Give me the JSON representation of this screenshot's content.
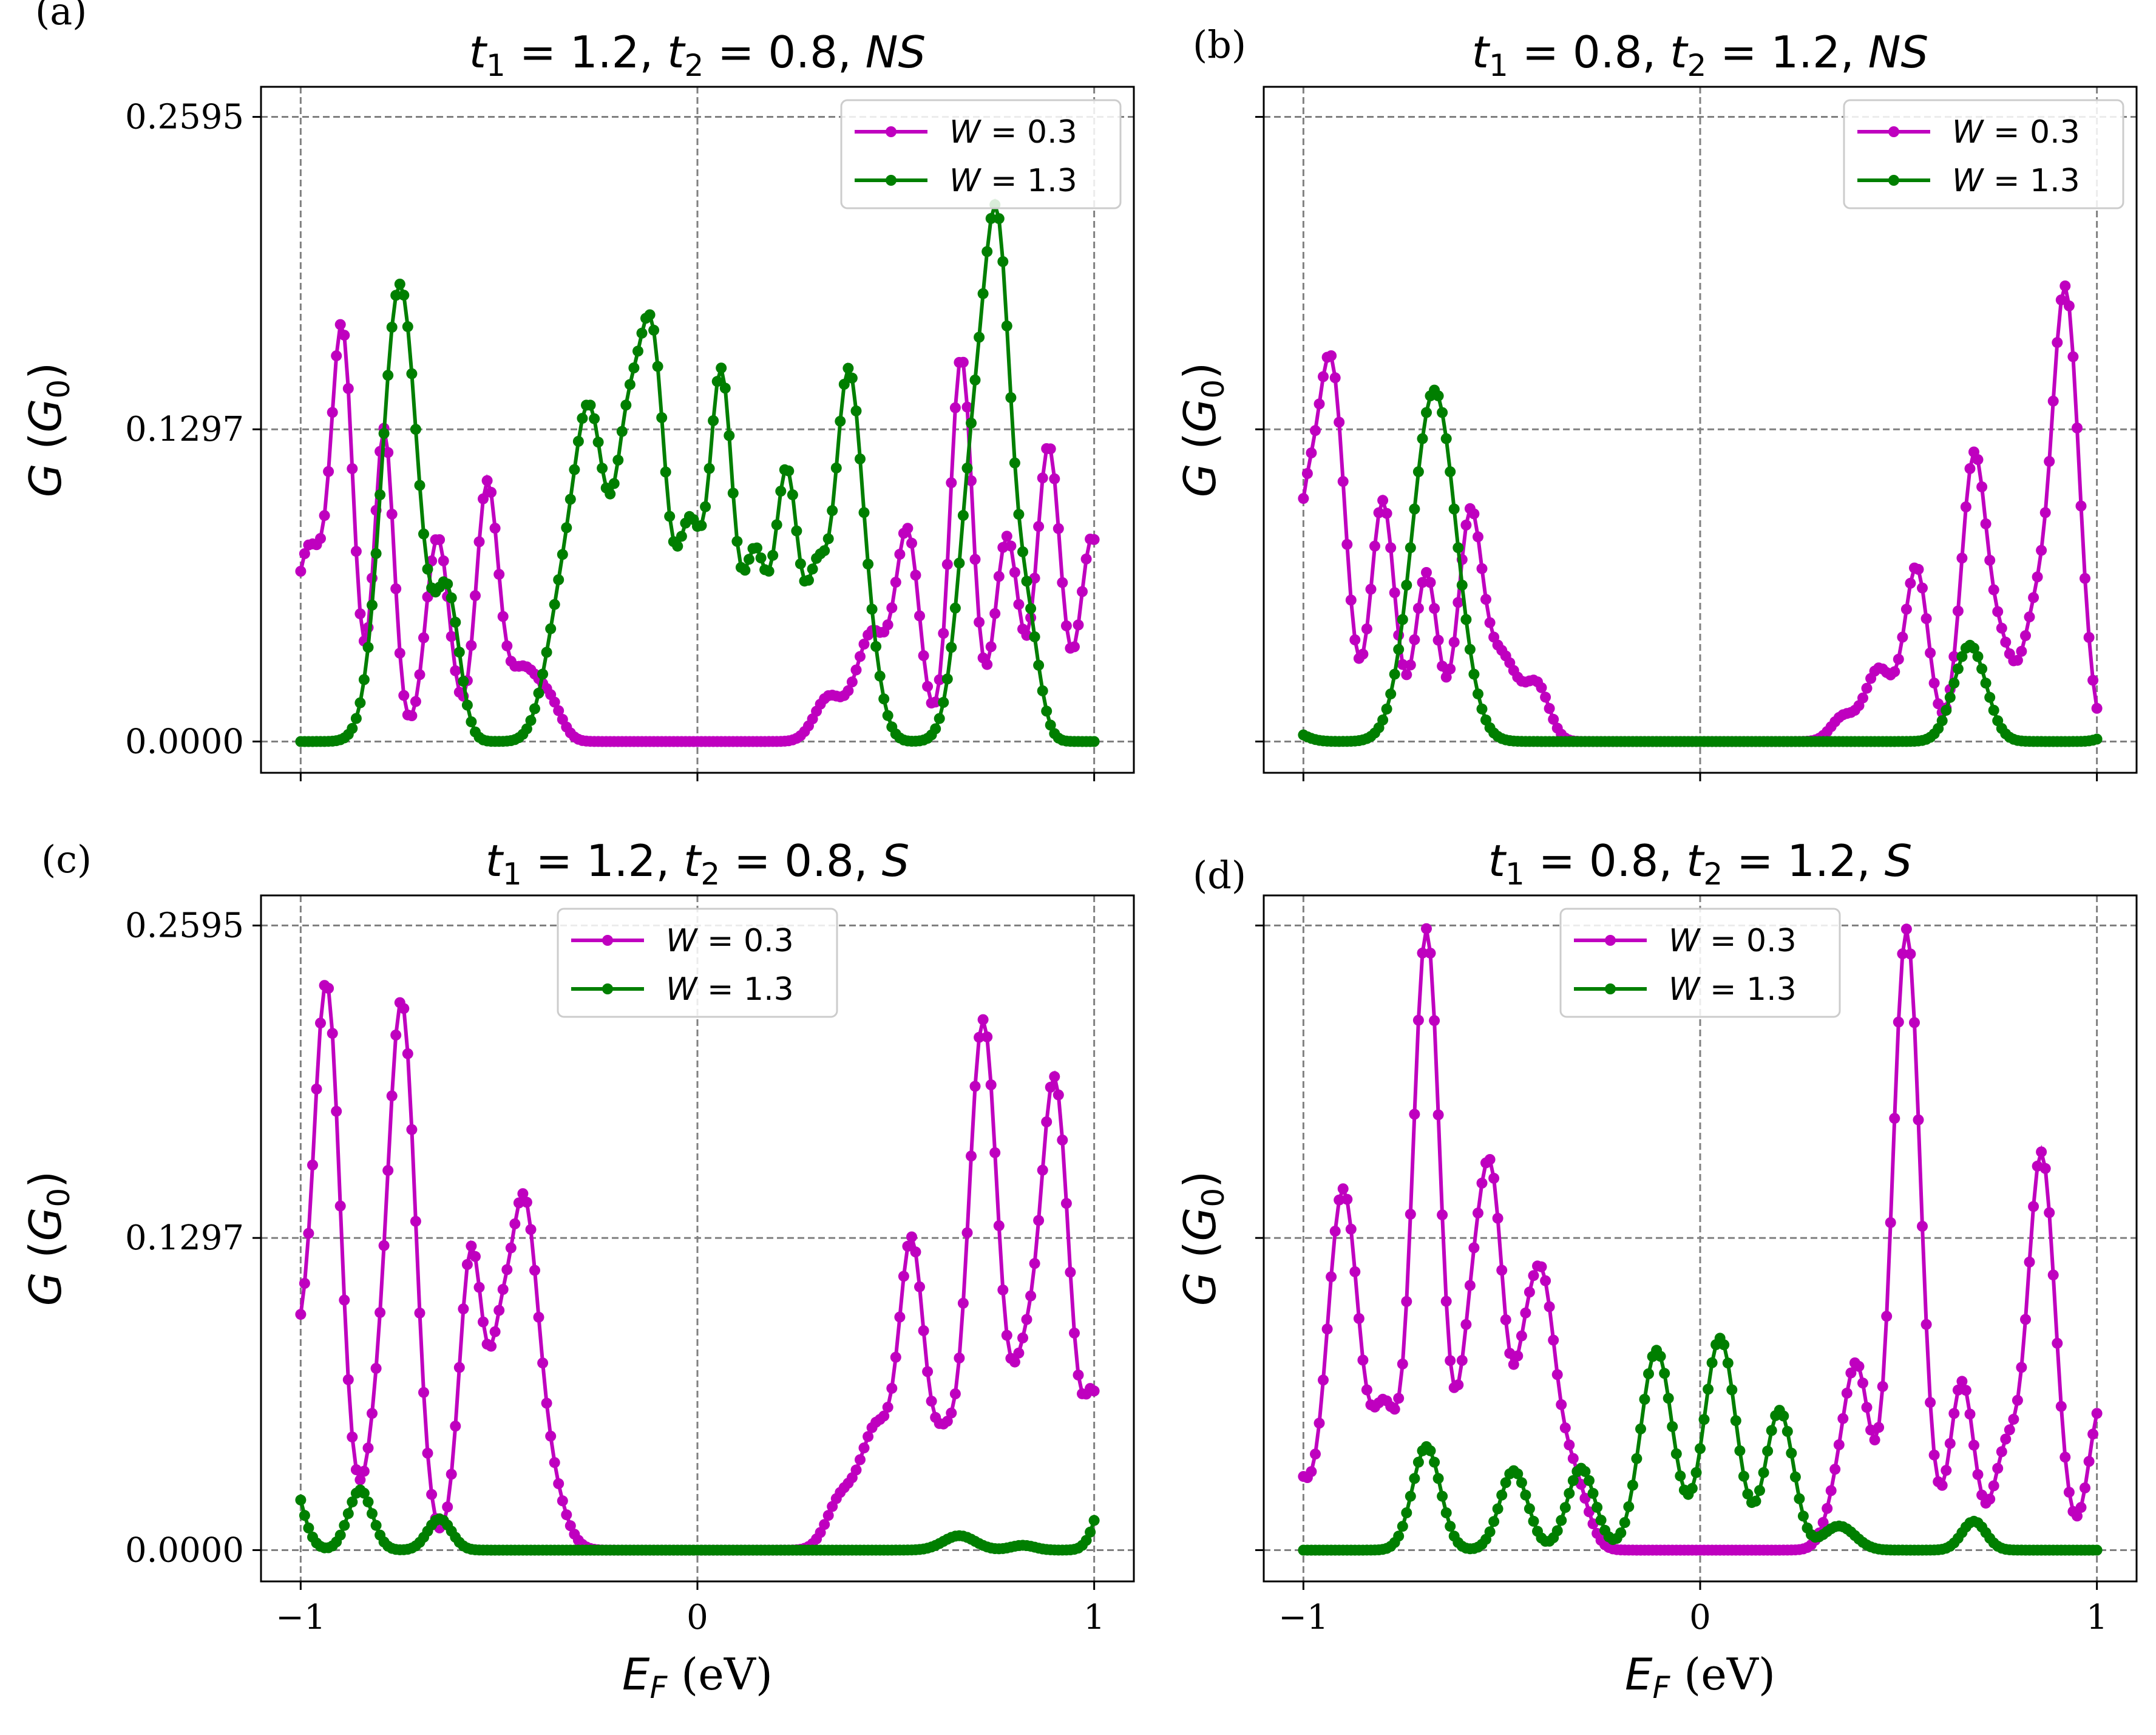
{
  "colors": {
    "W03": "#bf00bf",
    "W13": "#007f00",
    "grid": "#808080"
  },
  "legend_labels": {
    "W03_var": "W",
    "W03_val": " = 0.3",
    "W13_var": "W",
    "W13_val": " = 1.3"
  },
  "axis_text": {
    "ylabel_var": "G",
    "ylabel_open": " (",
    "ylabel_sub_var": "G",
    "ylabel_sub": "0",
    "ylabel_close": ")",
    "xlabel_var": "E",
    "xlabel_sub": "F",
    "xlabel_unit": " (eV)"
  },
  "chart_data": [
    {
      "type": "line",
      "panel_label": "(a)",
      "title_parts": [
        "t",
        "1",
        " = 1.2, ",
        "t",
        "2",
        " = 0.8, ",
        "NS"
      ],
      "xlim": [
        -1.1,
        1.1
      ],
      "ylim": [
        -0.013,
        0.272
      ],
      "xticks": [
        -1,
        0,
        1
      ],
      "xtick_labels": [
        "−1",
        "0",
        "1"
      ],
      "yticks": [
        0.0,
        0.1297,
        0.2595
      ],
      "ytick_labels": [
        "0.0000",
        "0.1297",
        "0.2595"
      ],
      "show_xtick_labels": false,
      "show_yticks": true,
      "show_xlabel": false,
      "show_ylabel": true,
      "legend_position": "upper right",
      "grid": true,
      "series": [
        {
          "name": "W = 0.3",
          "color_key": "W03",
          "peaks": [
            [
              -0.98,
              0.08,
              0.04
            ],
            [
              -0.895,
              0.165,
              0.028
            ],
            [
              -0.79,
              0.13,
              0.025
            ],
            [
              -0.655,
              0.085,
              0.03
            ],
            [
              -0.53,
              0.106,
              0.028
            ],
            [
              -0.44,
              0.03,
              0.04
            ],
            [
              -0.37,
              0.013,
              0.03
            ],
            [
              0.33,
              0.018,
              0.035
            ],
            [
              0.44,
              0.045,
              0.04
            ],
            [
              0.53,
              0.085,
              0.03
            ],
            [
              0.665,
              0.16,
              0.028
            ],
            [
              0.78,
              0.085,
              0.03
            ],
            [
              0.885,
              0.123,
              0.03
            ],
            [
              0.995,
              0.085,
              0.03
            ]
          ]
        },
        {
          "name": "W = 1.3",
          "color_key": "W03",
          "series_color": "W13",
          "peaks": [
            [
              -0.75,
              0.19,
              0.045
            ],
            [
              -0.63,
              0.06,
              0.03
            ],
            [
              -0.345,
              0.05,
              0.04
            ],
            [
              -0.27,
              0.13,
              0.04
            ],
            [
              -0.18,
              0.1,
              0.03
            ],
            [
              -0.115,
              0.165,
              0.035
            ],
            [
              -0.02,
              0.085,
              0.03
            ],
            [
              0.06,
              0.152,
              0.03
            ],
            [
              0.145,
              0.075,
              0.028
            ],
            [
              0.225,
              0.112,
              0.03
            ],
            [
              0.3,
              0.06,
              0.025
            ],
            [
              0.38,
              0.152,
              0.035
            ],
            [
              0.44,
              0.02,
              0.03
            ],
            [
              0.7,
              0.12,
              0.04
            ],
            [
              0.76,
              0.175,
              0.032
            ],
            [
              0.83,
              0.05,
              0.03
            ]
          ]
        }
      ]
    },
    {
      "type": "line",
      "panel_label": "(b)",
      "title_parts": [
        "t",
        "1",
        " = 0.8, ",
        "t",
        "2",
        " = 1.2, ",
        "NS"
      ],
      "xlim": [
        -1.1,
        1.1
      ],
      "ylim": [
        -0.013,
        0.272
      ],
      "xticks": [
        -1,
        0,
        1
      ],
      "xtick_labels": [
        "−1",
        "0",
        "1"
      ],
      "yticks": [
        0.0,
        0.1297,
        0.2595
      ],
      "ytick_labels": [
        "0.0000",
        "0.1297",
        "0.2595"
      ],
      "show_xtick_labels": false,
      "show_yticks": false,
      "show_xlabel": false,
      "show_ylabel": true,
      "legend_position": "upper right",
      "grid": true,
      "series": [
        {
          "name": "W = 0.3",
          "color_key": "W03",
          "peaks": [
            [
              -1.0,
              0.08,
              0.03
            ],
            [
              -0.93,
              0.155,
              0.035
            ],
            [
              -0.8,
              0.1,
              0.03
            ],
            [
              -0.69,
              0.07,
              0.028
            ],
            [
              -0.58,
              0.092,
              0.03
            ],
            [
              -0.5,
              0.035,
              0.04
            ],
            [
              -0.41,
              0.022,
              0.03
            ],
            [
              0.36,
              0.01,
              0.03
            ],
            [
              0.45,
              0.03,
              0.035
            ],
            [
              0.545,
              0.072,
              0.03
            ],
            [
              0.69,
              0.118,
              0.032
            ],
            [
              0.92,
              0.188,
              0.035
            ],
            [
              0.76,
              0.035,
              0.03
            ],
            [
              0.84,
              0.045,
              0.03
            ]
          ]
        },
        {
          "name": "W = 1.3",
          "color_key": "W03",
          "series_color": "W13",
          "peaks": [
            [
              -1.05,
              0.006,
              0.04
            ],
            [
              -0.67,
              0.146,
              0.055
            ],
            [
              0.68,
              0.04,
              0.04
            ],
            [
              1.05,
              0.004,
              0.03
            ]
          ]
        }
      ]
    },
    {
      "type": "line",
      "panel_label": "(c)",
      "title_parts": [
        "t",
        "1",
        " = 1.2, ",
        "t",
        "2",
        " = 0.8, ",
        "S"
      ],
      "xlim": [
        -1.1,
        1.1
      ],
      "ylim": [
        -0.013,
        0.272
      ],
      "xticks": [
        -1,
        0,
        1
      ],
      "xtick_labels": [
        "−1",
        "0",
        "1"
      ],
      "yticks": [
        0.0,
        0.1297,
        0.2595
      ],
      "ytick_labels": [
        "0.0000",
        "0.1297",
        "0.2595"
      ],
      "show_xtick_labels": true,
      "show_yticks": true,
      "show_xlabel": true,
      "show_ylabel": true,
      "legend_position": "upper center",
      "grid": true,
      "series": [
        {
          "name": "W = 0.3",
          "color_key": "W03",
          "peaks": [
            [
              -1.02,
              0.07,
              0.03
            ],
            [
              -0.935,
              0.235,
              0.035
            ],
            [
              -0.81,
              0.035,
              0.03
            ],
            [
              -0.745,
              0.225,
              0.035
            ],
            [
              -0.57,
              0.125,
              0.03
            ],
            [
              -0.44,
              0.135,
              0.035
            ],
            [
              -0.5,
              0.06,
              0.025
            ],
            [
              -0.38,
              0.03,
              0.04
            ],
            [
              0.36,
              0.02,
              0.035
            ],
            [
              0.45,
              0.05,
              0.04
            ],
            [
              0.54,
              0.125,
              0.032
            ],
            [
              0.62,
              0.04,
              0.03
            ],
            [
              0.72,
              0.22,
              0.038
            ],
            [
              0.9,
              0.195,
              0.038
            ],
            [
              0.82,
              0.06,
              0.03
            ],
            [
              1.0,
              0.06,
              0.025
            ]
          ]
        },
        {
          "name": "W = 1.3",
          "color_key": "W03",
          "series_color": "W13",
          "peaks": [
            [
              -1.04,
              0.04,
              0.035
            ],
            [
              -0.85,
              0.025,
              0.03
            ],
            [
              -0.65,
              0.013,
              0.03
            ],
            [
              0.66,
              0.006,
              0.04
            ],
            [
              0.82,
              0.002,
              0.03
            ],
            [
              1.04,
              0.03,
              0.03
            ]
          ]
        }
      ]
    },
    {
      "type": "line",
      "panel_label": "(d)",
      "title_parts": [
        "t",
        "1",
        " = 0.8, ",
        "t",
        "2",
        " = 1.2, ",
        "S"
      ],
      "xlim": [
        -1.1,
        1.1
      ],
      "ylim": [
        -0.013,
        0.272
      ],
      "xticks": [
        -1,
        0,
        1
      ],
      "xtick_labels": [
        "−1",
        "0",
        "1"
      ],
      "yticks": [
        0.0,
        0.1297,
        0.2595
      ],
      "ytick_labels": [
        "0.0000",
        "0.1297",
        "0.2595"
      ],
      "show_xtick_labels": true,
      "show_yticks": false,
      "show_xlabel": true,
      "show_ylabel": true,
      "legend_position": "upper center",
      "grid": true,
      "series": [
        {
          "name": "W = 0.3",
          "color_key": "W03",
          "peaks": [
            [
              -1.02,
              0.03,
              0.03
            ],
            [
              -0.9,
              0.15,
              0.04
            ],
            [
              -0.795,
              0.055,
              0.03
            ],
            [
              -0.69,
              0.258,
              0.035
            ],
            [
              -0.58,
              0.075,
              0.03
            ],
            [
              -0.525,
              0.145,
              0.032
            ],
            [
              -0.4,
              0.11,
              0.035
            ],
            [
              -0.45,
              0.04,
              0.025
            ],
            [
              -0.32,
              0.03,
              0.035
            ],
            [
              0.36,
              0.03,
              0.035
            ],
            [
              0.4,
              0.06,
              0.03
            ],
            [
              0.52,
              0.258,
              0.035
            ],
            [
              0.66,
              0.07,
              0.03
            ],
            [
              0.86,
              0.165,
              0.035
            ],
            [
              0.77,
              0.04,
              0.03
            ],
            [
              1.01,
              0.06,
              0.03
            ]
          ]
        },
        {
          "name": "W = 1.3",
          "color_key": "W03",
          "series_color": "W13",
          "peaks": [
            [
              -0.69,
              0.043,
              0.035
            ],
            [
              -0.47,
              0.033,
              0.035
            ],
            [
              -0.3,
              0.034,
              0.035
            ],
            [
              -0.11,
              0.083,
              0.04
            ],
            [
              0.05,
              0.088,
              0.04
            ],
            [
              0.2,
              0.058,
              0.035
            ],
            [
              0.35,
              0.01,
              0.04
            ],
            [
              0.69,
              0.012,
              0.03
            ]
          ]
        }
      ]
    }
  ]
}
